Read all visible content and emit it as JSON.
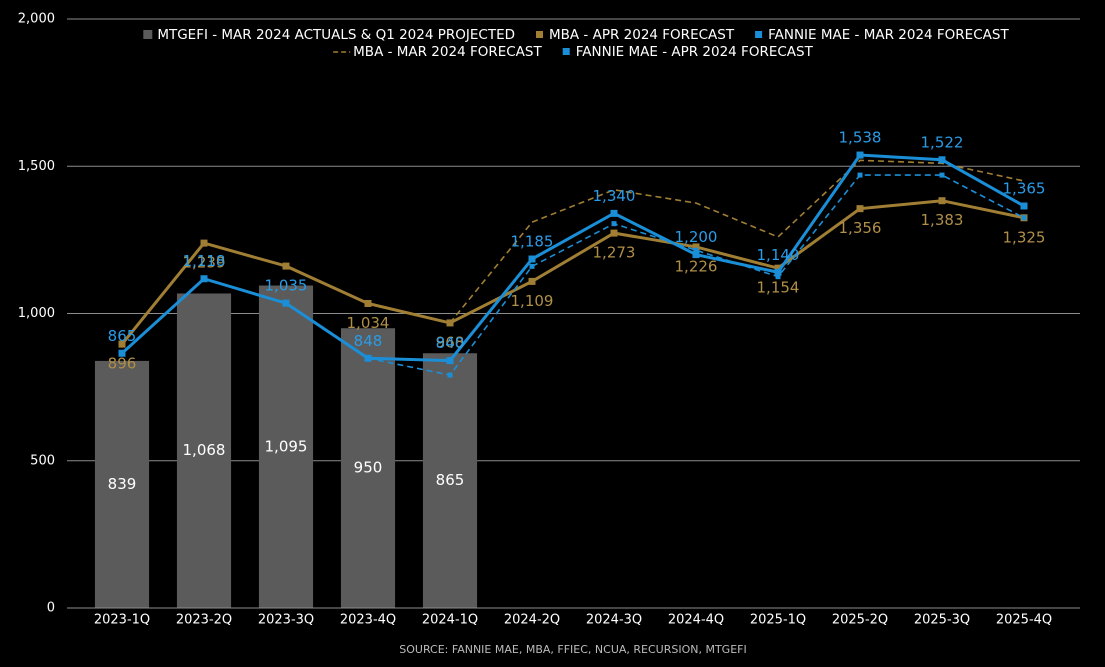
{
  "chart_data": {
    "type": "bar",
    "categories": [
      "2023-1Q",
      "2023-2Q",
      "2023-3Q",
      "2023-4Q",
      "2024-1Q",
      "2024-2Q",
      "2024-3Q",
      "2024-4Q",
      "2025-1Q",
      "2025-2Q",
      "2025-3Q",
      "2025-4Q"
    ],
    "ylim": [
      0,
      2000
    ],
    "yticks": [
      0,
      500,
      {
        "value": 1000,
        "label": "1,000"
      },
      {
        "value": 1500,
        "label": "1,500"
      },
      {
        "value": 2000,
        "label": "2,000"
      }
    ],
    "grid": true,
    "note": "SOURCE: FANNIE MAE, MBA, FFIEC, NCUA, RECURSION, MTGEFI",
    "series": [
      {
        "name": "MTGEFI - MAR 2024 ACTUALS & Q1 2024 PROJECTED",
        "type": "bar",
        "color": "#5b5b5b",
        "values": [
          839,
          1068,
          1095,
          950,
          865,
          null,
          null,
          null,
          null,
          null,
          null,
          null
        ],
        "value_labels": [
          "839",
          "1,068",
          "1,095",
          "950",
          "865",
          null,
          null,
          null,
          null,
          null,
          null,
          null
        ]
      },
      {
        "name": "MBA - APR 2024 FORECAST",
        "type": "line",
        "color": "#a07f35",
        "dashed": false,
        "marker": true,
        "label_side": "below",
        "values": [
          896,
          1239,
          1161,
          1034,
          968,
          1109,
          1273,
          1226,
          1154,
          1356,
          1383,
          1325
        ],
        "value_labels": [
          "896",
          "1,239",
          null,
          "1,034",
          "968",
          "1,109",
          "1,273",
          "1,226",
          "1,154",
          "1,356",
          "1,383",
          "1,325"
        ]
      },
      {
        "name": "FANNIE MAE - MAR 2024 FORECAST",
        "type": "line",
        "color": "#1a8fd8",
        "dashed": true,
        "marker": true,
        "values": [
          null,
          null,
          null,
          848,
          791,
          1160,
          1305,
          1215,
          1125,
          1470,
          1470,
          1325
        ]
      },
      {
        "name": "MBA - MAR 2024 FORECAST",
        "type": "line",
        "color": "#a07f35",
        "dashed": true,
        "marker": false,
        "values": [
          null,
          null,
          null,
          null,
          968,
          1310,
          1420,
          1375,
          1260,
          1520,
          1510,
          1450
        ]
      },
      {
        "name": "FANNIE MAE - APR 2024 FORECAST",
        "type": "line",
        "color": "#1a8fd8",
        "dashed": false,
        "marker": true,
        "label_side": "above",
        "values": [
          865,
          1118,
          1035,
          848,
          840,
          1185,
          1340,
          1200,
          1140,
          1538,
          1522,
          1365
        ],
        "value_labels": [
          "865",
          "1,118",
          "1,035",
          "848",
          "840",
          "1,185",
          "1,340",
          "1,200",
          "1,140",
          "1,538",
          "1,522",
          "1,365"
        ]
      }
    ]
  }
}
